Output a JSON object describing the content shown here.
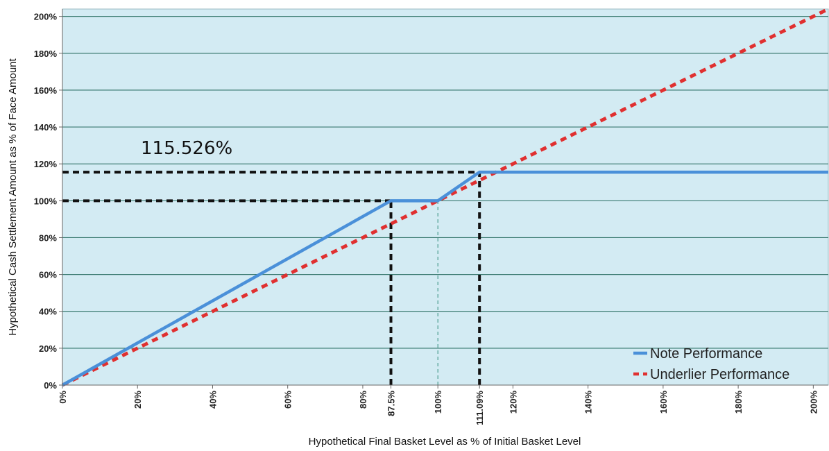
{
  "chart_data": {
    "type": "line",
    "xlabel": "Hypothetical Final Basket Level as % of Initial Basket Level",
    "ylabel": "Hypothetical Cash Settlement Amount as % of Face Amount",
    "xlim": [
      0,
      204
    ],
    "ylim": [
      0,
      204
    ],
    "x_ticks": [
      {
        "value": 0,
        "label": "0%"
      },
      {
        "value": 20,
        "label": "20%"
      },
      {
        "value": 40,
        "label": "40%"
      },
      {
        "value": 60,
        "label": "60%"
      },
      {
        "value": 80,
        "label": "80%"
      },
      {
        "value": 87.5,
        "label": "87.5%"
      },
      {
        "value": 100,
        "label": "100%"
      },
      {
        "value": 111.09,
        "label": "111.09%"
      },
      {
        "value": 120,
        "label": "120%"
      },
      {
        "value": 140,
        "label": "140%"
      },
      {
        "value": 160,
        "label": "160%"
      },
      {
        "value": 180,
        "label": "180%"
      },
      {
        "value": 200,
        "label": "200%"
      }
    ],
    "y_ticks": [
      {
        "value": 0,
        "label": "0%"
      },
      {
        "value": 20,
        "label": "20%"
      },
      {
        "value": 40,
        "label": "40%"
      },
      {
        "value": 60,
        "label": "60%"
      },
      {
        "value": 80,
        "label": "80%"
      },
      {
        "value": 100,
        "label": "100%"
      },
      {
        "value": 120,
        "label": "120%"
      },
      {
        "value": 140,
        "label": "140%"
      },
      {
        "value": 160,
        "label": "160%"
      },
      {
        "value": 180,
        "label": "180%"
      },
      {
        "value": 200,
        "label": "200%"
      }
    ],
    "grid": "horizontal",
    "legend_position": "bottom-right",
    "series": [
      {
        "name": "Note Performance",
        "color": "#4A90D9",
        "style": "solid",
        "points": [
          [
            0,
            0
          ],
          [
            87.5,
            100
          ],
          [
            100,
            100
          ],
          [
            111.09,
            115.526
          ],
          [
            204,
            115.526
          ]
        ]
      },
      {
        "name": "Underlier Performance",
        "color": "#E03030",
        "style": "dashed",
        "points": [
          [
            0,
            0
          ],
          [
            204,
            204
          ]
        ]
      }
    ],
    "reference_lines": [
      {
        "from": [
          0,
          115.526
        ],
        "to": [
          111.09,
          115.526
        ],
        "style": "dashed-black"
      },
      {
        "from": [
          0,
          100
        ],
        "to": [
          87.5,
          100
        ],
        "style": "dashed-black"
      },
      {
        "from": [
          87.5,
          0
        ],
        "to": [
          87.5,
          100
        ],
        "style": "dashed-black"
      },
      {
        "from": [
          111.09,
          0
        ],
        "to": [
          111.09,
          115.526
        ],
        "style": "dashed-black"
      },
      {
        "from": [
          100,
          0
        ],
        "to": [
          100,
          100
        ],
        "style": "thin-dashed-teal"
      }
    ],
    "annotations": [
      {
        "text": "115.526%",
        "x": 20,
        "y": 130
      }
    ],
    "colors": {
      "plot_background": "#D3EBF3",
      "gridline": "#3A7A70",
      "reference": "#111111",
      "thin_reference": "#2E8B7A"
    }
  }
}
